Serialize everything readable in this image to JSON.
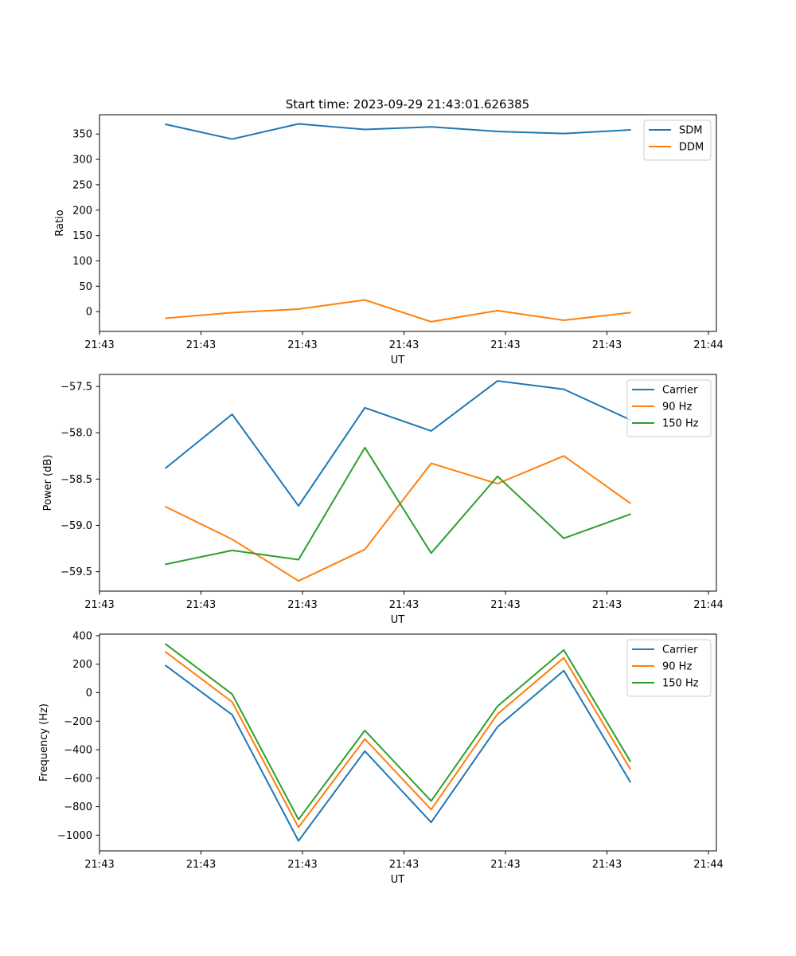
{
  "figure": {
    "title": "Start time: 2023-09-29 21:43:01.626385"
  },
  "chart_data": [
    {
      "type": "line",
      "title": "Start time: 2023-09-29 21:43:01.626385",
      "xlabel": "UT",
      "ylabel": "Ratio",
      "x": [
        1,
        2,
        3,
        4,
        5,
        6,
        7,
        8
      ],
      "xlim": [
        0,
        9.3
      ],
      "xticks": [
        0.0,
        1.53,
        3.06,
        4.59,
        6.12,
        7.65,
        9.18
      ],
      "xtick_labels": [
        "21:43",
        "21:43",
        "21:43",
        "21:43",
        "21:43",
        "21:43",
        "21:44"
      ],
      "ylim": [
        -39,
        388
      ],
      "yticks": [
        0,
        50,
        100,
        150,
        200,
        250,
        300,
        350
      ],
      "ytick_labels": [
        "0",
        "50",
        "100",
        "150",
        "200",
        "250",
        "300",
        "350"
      ],
      "grid": false,
      "legend_position": "top-right",
      "series": [
        {
          "name": "SDM",
          "color": "#1f77b4",
          "values": [
            369,
            340,
            370,
            359,
            364,
            355,
            351,
            358
          ]
        },
        {
          "name": "DDM",
          "color": "#ff7f0e",
          "values": [
            -13,
            -2,
            5,
            23,
            -20,
            2,
            -17,
            -2
          ]
        }
      ]
    },
    {
      "type": "line",
      "title": "",
      "xlabel": "UT",
      "ylabel": "Power (dB)",
      "x": [
        1,
        2,
        3,
        4,
        5,
        6,
        7,
        8
      ],
      "xlim": [
        0,
        9.3
      ],
      "xticks": [
        0.0,
        1.53,
        3.06,
        4.59,
        6.12,
        7.65,
        9.18
      ],
      "xtick_labels": [
        "21:43",
        "21:43",
        "21:43",
        "21:43",
        "21:43",
        "21:43",
        "21:44"
      ],
      "ylim": [
        -59.71,
        -57.37
      ],
      "yticks": [
        -59.5,
        -59.0,
        -58.5,
        -58.0,
        -57.5
      ],
      "ytick_labels": [
        "−59.5",
        "−59.0",
        "−58.5",
        "−58.0",
        "−57.5"
      ],
      "grid": false,
      "legend_position": "top-right",
      "series": [
        {
          "name": "Carrier",
          "color": "#1f77b4",
          "values": [
            -58.38,
            -57.8,
            -58.79,
            -57.73,
            -57.98,
            -57.44,
            -57.53,
            -57.86
          ]
        },
        {
          "name": "90 Hz",
          "color": "#ff7f0e",
          "values": [
            -58.8,
            -59.15,
            -59.6,
            -59.26,
            -58.33,
            -58.55,
            -58.25,
            -58.76
          ]
        },
        {
          "name": "150 Hz",
          "color": "#2ca02c",
          "values": [
            -59.42,
            -59.27,
            -59.37,
            -58.16,
            -59.3,
            -58.47,
            -59.14,
            -58.88
          ]
        }
      ]
    },
    {
      "type": "line",
      "title": "",
      "xlabel": "UT",
      "ylabel": "Frequency (Hz)",
      "x": [
        1,
        2,
        3,
        4,
        5,
        6,
        7,
        8
      ],
      "xlim": [
        0,
        9.3
      ],
      "xticks": [
        0.0,
        1.53,
        3.06,
        4.59,
        6.12,
        7.65,
        9.18
      ],
      "xtick_labels": [
        "21:43",
        "21:43",
        "21:43",
        "21:43",
        "21:43",
        "21:43",
        "21:44"
      ],
      "ylim": [
        -1110,
        411
      ],
      "yticks": [
        -1000,
        -800,
        -600,
        -400,
        -200,
        0,
        200,
        400
      ],
      "ytick_labels": [
        "−1000",
        "−800",
        "−600",
        "−400",
        "−200",
        "0",
        "200",
        "400"
      ],
      "grid": false,
      "legend_position": "top-right",
      "series": [
        {
          "name": "Carrier",
          "color": "#1f77b4",
          "values": [
            190,
            -155,
            -1040,
            -410,
            -910,
            -240,
            155,
            -625
          ]
        },
        {
          "name": "90 Hz",
          "color": "#ff7f0e",
          "values": [
            285,
            -65,
            -945,
            -325,
            -820,
            -150,
            245,
            -535
          ]
        },
        {
          "name": "150 Hz",
          "color": "#2ca02c",
          "values": [
            340,
            -10,
            -890,
            -265,
            -760,
            -95,
            300,
            -480
          ]
        }
      ]
    }
  ]
}
